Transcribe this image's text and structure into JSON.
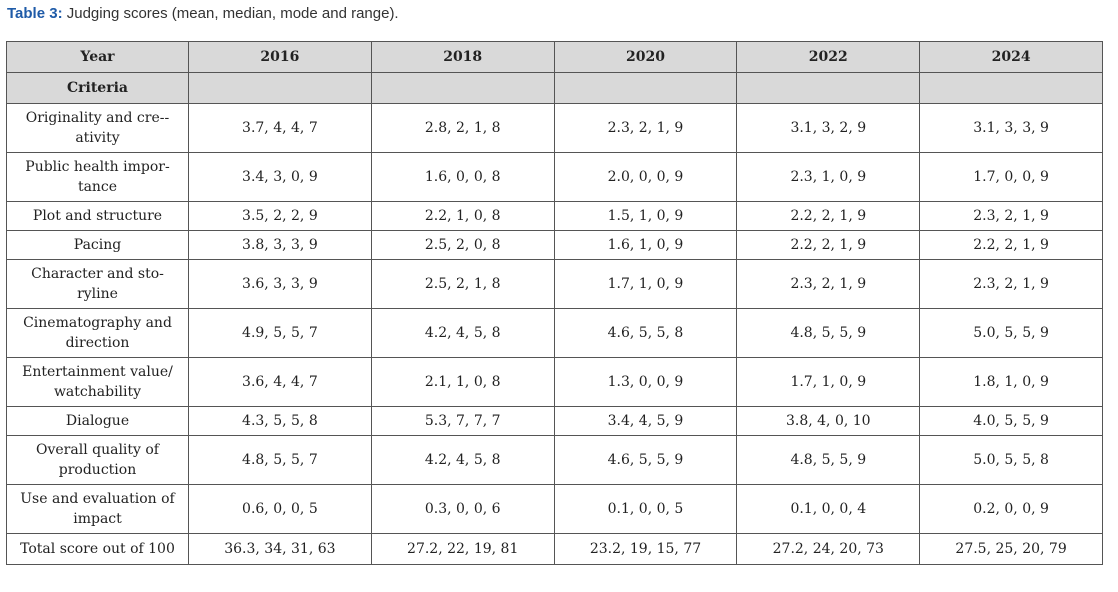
{
  "caption": {
    "label": "Table 3:",
    "text": "Judging scores (mean, median, mode and range)."
  },
  "table": {
    "year_label": "Year",
    "criteria_label": "Criteria",
    "years": [
      "2016",
      "2018",
      "2020",
      "2022",
      "2024"
    ],
    "rows": [
      {
        "criterion": "Originality and cre-­ativity",
        "values": [
          "3.7, 4, 4, 7",
          "2.8, 2, 1, 8",
          "2.3, 2, 1, 9",
          "3.1, 3, 2, 9",
          "3.1, 3, 3, 9"
        ]
      },
      {
        "criterion": "Public health impor-tance",
        "values": [
          "3.4, 3, 0, 9",
          "1.6, 0, 0, 8",
          "2.0, 0, 0, 9",
          "2.3, 1, 0, 9",
          "1.7, 0, 0, 9"
        ]
      },
      {
        "criterion": "Plot and structure",
        "values": [
          "3.5, 2, 2, 9",
          "2.2, 1, 0, 8",
          "1.5, 1, 0, 9",
          "2.2, 2, 1, 9",
          "2.3, 2, 1, 9"
        ]
      },
      {
        "criterion": "Pacing",
        "values": [
          "3.8, 3, 3, 9",
          "2.5, 2, 0, 8",
          "1.6, 1, 0, 9",
          "2.2, 2, 1, 9",
          "2.2, 2, 1, 9"
        ]
      },
      {
        "criterion": "Character and sto-ryline",
        "values": [
          "3.6, 3, 3, 9",
          "2.5, 2, 1, 8",
          "1.7, 1, 0, 9",
          "2.3, 2, 1, 9",
          "2.3, 2, 1, 9"
        ]
      },
      {
        "criterion": "Cinematography and direction",
        "values": [
          "4.9, 5, 5, 7",
          "4.2, 4, 5, 8",
          "4.6, 5, 5, 8",
          "4.8, 5, 5, 9",
          "5.0, 5, 5, 9"
        ]
      },
      {
        "criterion": "Entertainment value/ watchability",
        "values": [
          "3.6, 4, 4, 7",
          "2.1, 1, 0, 8",
          "1.3, 0, 0, 9",
          "1.7, 1, 0, 9",
          "1.8, 1, 0, 9"
        ]
      },
      {
        "criterion": "Dialogue",
        "values": [
          "4.3, 5, 5, 8",
          "5.3, 7, 7, 7",
          "3.4, 4, 5, 9",
          "3.8, 4, 0, 10",
          "4.0, 5, 5, 9"
        ]
      },
      {
        "criterion": "Overall quality of production",
        "values": [
          "4.8, 5, 5, 7",
          "4.2, 4, 5, 8",
          "4.6, 5, 5, 9",
          "4.8, 5, 5, 9",
          "5.0, 5, 5, 8"
        ]
      },
      {
        "criterion": "Use and evaluation of impact",
        "values": [
          "0.6, 0, 0, 5",
          "0.3, 0, 0, 6",
          "0.1, 0, 0, 5",
          "0.1, 0, 0, 4",
          "0.2, 0, 0, 9"
        ]
      },
      {
        "criterion": "Total score out of 100",
        "values": [
          "36.3, 34, 31, 63",
          "27.2, 22, 19, 81",
          "23.2, 19, 15, 77",
          "27.2, 24, 20, 73",
          "27.5, 25, 20, 79"
        ]
      }
    ]
  }
}
